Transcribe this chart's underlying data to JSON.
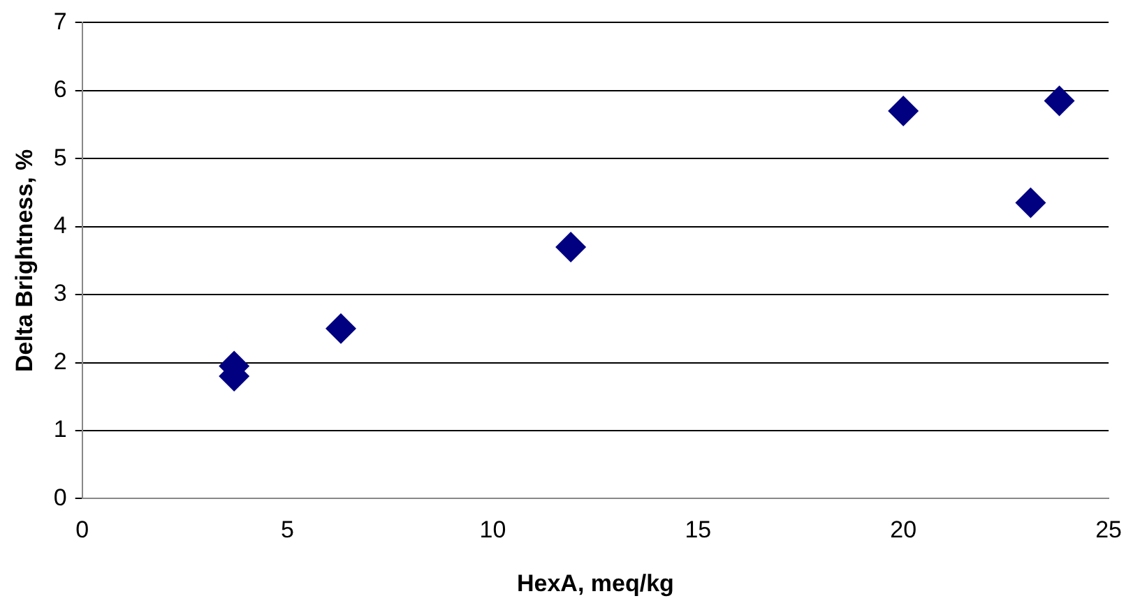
{
  "chart_data": {
    "type": "scatter",
    "xlabel": "HexA, meq/kg",
    "ylabel": "Delta Brightness, %",
    "x": [
      3.7,
      3.7,
      6.3,
      11.9,
      20.0,
      23.1,
      23.8
    ],
    "series": [
      {
        "color": "#000080",
        "values": [
          1.95,
          1.8,
          2.5,
          3.7,
          5.7,
          4.35,
          5.85
        ]
      }
    ],
    "xlim": [
      0,
      25
    ],
    "xticks": [
      0,
      5,
      10,
      15,
      20,
      25
    ],
    "ylim": [
      0,
      7
    ],
    "yticks": [
      0,
      1,
      2,
      3,
      4,
      5,
      6,
      7
    ],
    "grid": "y",
    "marker": "diamond",
    "legend": false
  }
}
